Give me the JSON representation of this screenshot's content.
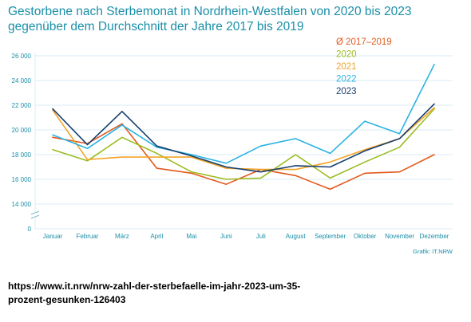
{
  "title_line1": "Gestorbene nach Sterbemonat in Nordrhein-Westfalen von 2020 bis 2023",
  "title_line2": "gegenüber dem Durchschnitt der Jahre 2017 bis 2019",
  "source": "Grafik: IT.NRW",
  "url_line1": "https://www.it.nrw/nrw-zahl-der-sterbefaelle-im-jahr-2023-um-35-",
  "url_line2": "prozent-gesunken-126403",
  "colors": {
    "text": "#1a8fa8",
    "grid": "#d9eef4",
    "avg": "#e25a1e",
    "y2020": "#9bbc1f",
    "y2021": "#f2a424",
    "y2022": "#29b3e3",
    "y2023": "#173f6e"
  },
  "chart_data": {
    "type": "line",
    "categories": [
      "Januar",
      "Februar",
      "März",
      "April",
      "Mai",
      "Juni",
      "Juli",
      "August",
      "September",
      "Oktober",
      "November",
      "Dezember"
    ],
    "ytick_labels": [
      "0",
      "14 000",
      "16 000",
      "18 000",
      "20 000",
      "22 000",
      "24 000",
      "26 000"
    ],
    "ylim": [
      14000,
      26000
    ],
    "axis_break": true,
    "grid": true,
    "legend_position": "top-right",
    "series": [
      {
        "name": "Ø 2017–2019",
        "color_key": "avg",
        "values": [
          19400,
          18900,
          20500,
          16900,
          16500,
          15600,
          16800,
          16300,
          15200,
          16500,
          16600,
          18000
        ]
      },
      {
        "name": "2020",
        "color_key": "y2020",
        "values": [
          18400,
          17500,
          19400,
          18100,
          16600,
          16000,
          16100,
          18000,
          16100,
          17400,
          18600,
          21700
        ]
      },
      {
        "name": "2021",
        "color_key": "y2021",
        "values": [
          21600,
          17600,
          17800,
          17800,
          17800,
          16900,
          16800,
          16800,
          17400,
          18400,
          19300,
          21800
        ]
      },
      {
        "name": "2022",
        "color_key": "y2022",
        "values": [
          19600,
          18500,
          20400,
          18600,
          18000,
          17300,
          18700,
          19300,
          18100,
          20700,
          19700,
          25300
        ]
      },
      {
        "name": "2023",
        "color_key": "y2023",
        "values": [
          21700,
          18800,
          21500,
          18700,
          17900,
          17000,
          16600,
          17100,
          17000,
          18300,
          19300,
          22100
        ]
      }
    ]
  }
}
